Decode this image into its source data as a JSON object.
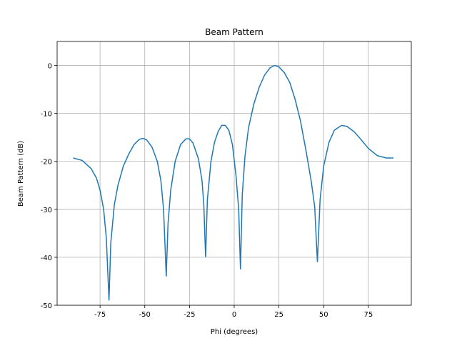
{
  "chart_data": {
    "type": "line",
    "title": "Beam Pattern",
    "xlabel": "Phi (degrees)",
    "ylabel": "Beam Pattern (dB)",
    "x": [
      -90,
      -85,
      -80,
      -77,
      -75,
      -73,
      -71.5,
      -70,
      -69,
      -67,
      -65,
      -62,
      -59,
      -56,
      -53,
      -51,
      -49,
      -46,
      -43,
      -41,
      -39.5,
      -38,
      -37,
      -35.5,
      -33,
      -30,
      -27,
      -25,
      -23,
      -20,
      -18,
      -17,
      -16,
      -15,
      -13,
      -11,
      -9,
      -7,
      -5,
      -3,
      -1,
      1,
      2.5,
      3.5,
      4.5,
      6,
      8,
      11,
      14,
      17,
      20,
      22.5,
      25,
      28,
      31,
      34,
      37,
      40,
      43,
      45,
      46.5,
      48,
      50,
      53,
      56,
      60,
      63,
      67,
      71,
      75,
      80,
      85,
      89
    ],
    "series": [
      {
        "name": "Beam Pattern",
        "color": "#1f77b4",
        "values": [
          -19.3,
          -19.8,
          -21.5,
          -23.5,
          -26,
          -30,
          -36,
          -49,
          -37,
          -29,
          -25,
          -21,
          -18.5,
          -16.5,
          -15.4,
          -15.2,
          -15.5,
          -17,
          -20,
          -24,
          -30,
          -44,
          -33,
          -26,
          -20,
          -16.5,
          -15.3,
          -15.3,
          -16.2,
          -19.5,
          -24,
          -29,
          -40,
          -28,
          -20,
          -16,
          -13.8,
          -12.5,
          -12.5,
          -13.5,
          -16.5,
          -23,
          -30,
          -42.5,
          -27,
          -19,
          -13,
          -8,
          -4.5,
          -2,
          -0.5,
          0,
          -0.3,
          -1.5,
          -3.5,
          -7,
          -11.5,
          -17.5,
          -24,
          -29.5,
          -41,
          -28,
          -21,
          -16,
          -13.5,
          -12.5,
          -12.7,
          -13.8,
          -15.5,
          -17.3,
          -18.8,
          -19.3,
          -19.3
        ]
      }
    ],
    "xlim": [
      -99,
      99
    ],
    "ylim": [
      -50,
      5
    ],
    "xticks": [
      -75,
      -50,
      -25,
      0,
      25,
      50,
      75
    ],
    "yticks": [
      -50,
      -40,
      -30,
      -20,
      -10,
      0
    ],
    "grid": true
  }
}
